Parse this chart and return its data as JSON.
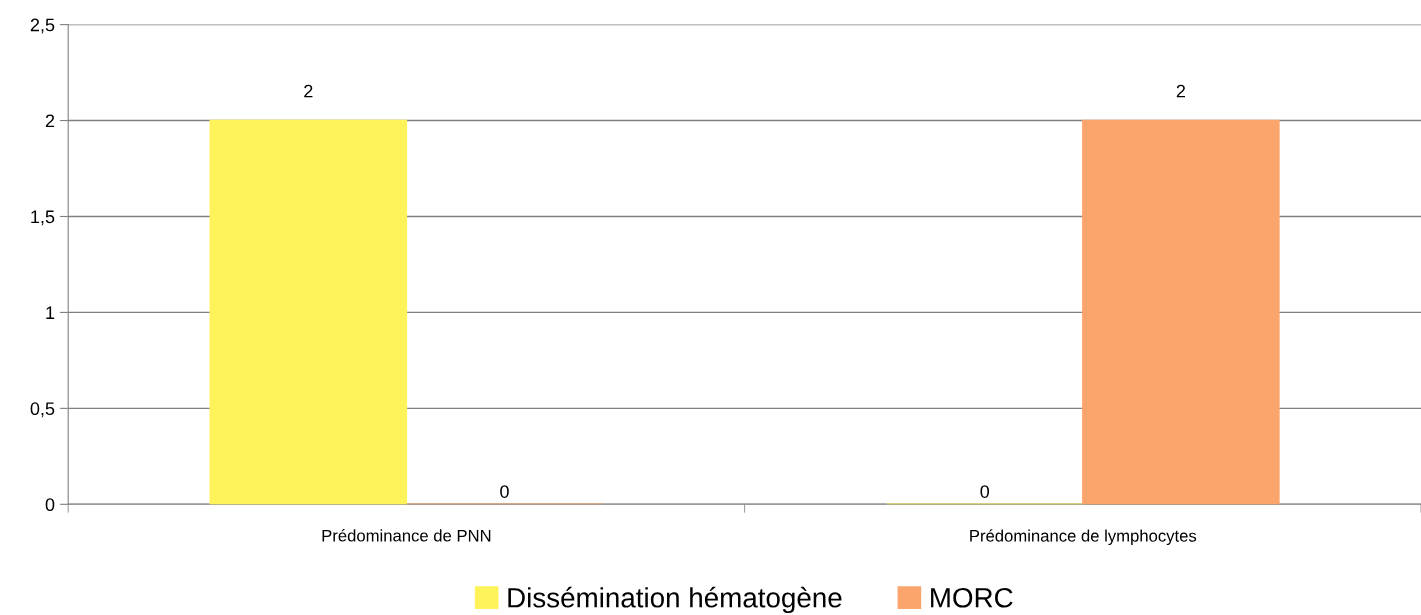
{
  "chart_data": {
    "type": "bar",
    "categories": [
      "Prédominance de PNN",
      "Prédominance de lymphocytes"
    ],
    "series": [
      {
        "name": "Dissémination hématogène",
        "color": "#fff35a",
        "values": [
          2,
          0
        ]
      },
      {
        "name": "MORC",
        "color": "#fba46c",
        "values": [
          0,
          2
        ]
      }
    ],
    "ylim": [
      0,
      2.5
    ],
    "yticks": [
      0,
      {
        "value": 0.5,
        "label": "0,5"
      },
      1,
      {
        "value": 1.5,
        "label": "1,5"
      },
      2,
      {
        "value": 2.5,
        "label": "2,5"
      }
    ],
    "grid": "y",
    "legend": "bottom",
    "data_labels": true
  }
}
